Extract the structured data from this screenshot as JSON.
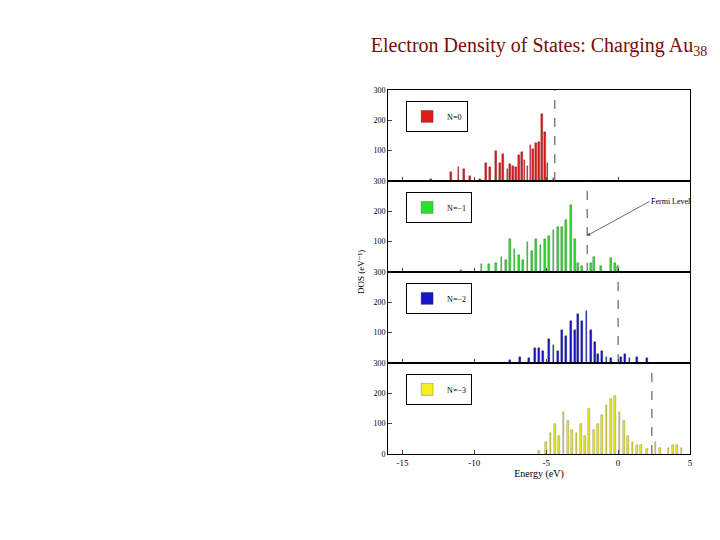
{
  "title": {
    "text": "Electron Density of States: Charging Au",
    "subscript": "38"
  },
  "ylabel": "DOS (eV⁻¹)",
  "chart_data": [
    {
      "type": "bar",
      "x": [
        -13.0,
        -11.6,
        -11.1,
        -10.7,
        -10.3,
        -9.6,
        -9.2,
        -8.9,
        -8.5,
        -8.2,
        -8.0,
        -7.7,
        -7.5,
        -7.3,
        -7.1,
        -6.9,
        -6.7,
        -6.5,
        -6.3,
        -6.1,
        -5.9,
        -5.7,
        -5.5,
        -5.3,
        -5.1,
        -4.9,
        -4.5
      ],
      "series": [
        {
          "name": "N=0",
          "color": "#e01b1b",
          "values": [
            5,
            30,
            45,
            40,
            15,
            5,
            60,
            45,
            100,
            60,
            90,
            40,
            55,
            50,
            45,
            85,
            95,
            70,
            50,
            120,
            105,
            125,
            130,
            220,
            160,
            60,
            10
          ]
        }
      ],
      "xlim": [
        -16,
        5
      ],
      "xticks": [
        -15,
        -10,
        -5,
        0,
        5
      ],
      "ylim": [
        0,
        300
      ],
      "yticks": [
        100,
        200,
        300
      ],
      "tick_labels": "y",
      "legend": "upper left",
      "grid": false,
      "fermi_level": -4.4
    },
    {
      "type": "bar",
      "x": [
        -10.9,
        -9.5,
        -9.0,
        -8.5,
        -8.1,
        -7.8,
        -7.5,
        -7.2,
        -6.9,
        -6.6,
        -6.3,
        -6.0,
        -5.7,
        -5.4,
        -5.1,
        -4.8,
        -4.5,
        -4.2,
        -3.9,
        -3.6,
        -3.3,
        -3.0,
        -2.8,
        -2.5,
        -1.9,
        -1.7,
        -1.2,
        -0.5,
        -0.2,
        0.0
      ],
      "series": [
        {
          "name": "N=−1",
          "color": "#2ee02e",
          "values": [
            5,
            25,
            25,
            30,
            50,
            40,
            110,
            75,
            55,
            40,
            100,
            70,
            110,
            90,
            110,
            120,
            140,
            150,
            150,
            170,
            220,
            110,
            30,
            20,
            30,
            50,
            20,
            45,
            30,
            20
          ]
        }
      ],
      "xlim": [
        -16,
        5
      ],
      "xticks": [
        -15,
        -10,
        -5,
        0,
        5
      ],
      "ylim": [
        0,
        300
      ],
      "yticks": [
        100,
        200,
        300
      ],
      "tick_labels": "y",
      "legend": "upper left",
      "grid": false,
      "fermi_level": -2.15,
      "annotations": [
        {
          "text": "Fermi Level",
          "x": -2.15,
          "y": 120
        }
      ]
    },
    {
      "type": "bar",
      "x": [
        -7.5,
        -6.8,
        -6.2,
        -5.8,
        -5.5,
        -5.2,
        -4.8,
        -4.5,
        -4.2,
        -3.9,
        -3.6,
        -3.3,
        -3.0,
        -2.8,
        -2.5,
        -2.2,
        -1.9,
        -1.6,
        -1.4,
        -1.1,
        -0.8,
        -0.5,
        0.2,
        0.5,
        0.8,
        1.3,
        2.0
      ],
      "series": [
        {
          "name": "N=−2",
          "color": "#1717c8",
          "values": [
            10,
            20,
            15,
            50,
            50,
            40,
            80,
            60,
            40,
            110,
            90,
            140,
            110,
            160,
            140,
            170,
            110,
            70,
            30,
            40,
            20,
            15,
            20,
            30,
            15,
            20,
            15
          ]
        }
      ],
      "xlim": [
        -16,
        5
      ],
      "xticks": [
        -15,
        -10,
        -5,
        0,
        5
      ],
      "ylim": [
        0,
        300
      ],
      "yticks": [
        100,
        200,
        300
      ],
      "tick_labels": "y",
      "legend": "upper left",
      "grid": false,
      "fermi_level": 0.0
    },
    {
      "type": "bar",
      "x": [
        -5.5,
        -5.0,
        -4.7,
        -4.4,
        -4.1,
        -3.8,
        -3.5,
        -3.2,
        -2.9,
        -2.6,
        -2.3,
        -2.0,
        -1.7,
        -1.4,
        -1.1,
        -0.8,
        -0.5,
        -0.2,
        0.1,
        0.4,
        0.7,
        1.0,
        1.3,
        1.6,
        2.0,
        2.6,
        2.9,
        3.5,
        3.8,
        4.1,
        4.4
      ],
      "series": [
        {
          "name": "N=−3",
          "color": "#f2ee22",
          "values": [
            10,
            40,
            70,
            100,
            60,
            140,
            110,
            80,
            70,
            100,
            60,
            150,
            80,
            100,
            130,
            160,
            180,
            190,
            140,
            110,
            60,
            40,
            30,
            30,
            15,
            40,
            20,
            20,
            30,
            30,
            20
          ]
        }
      ],
      "xlim": [
        -16,
        5
      ],
      "xticks": [
        -15,
        -10,
        -5,
        0,
        5
      ],
      "ylim": [
        0,
        300
      ],
      "yticks": [
        0,
        100,
        200,
        300
      ],
      "legend": "upper left",
      "grid": false,
      "xlabel": "Energy (eV)",
      "fermi_level": 2.35
    }
  ]
}
